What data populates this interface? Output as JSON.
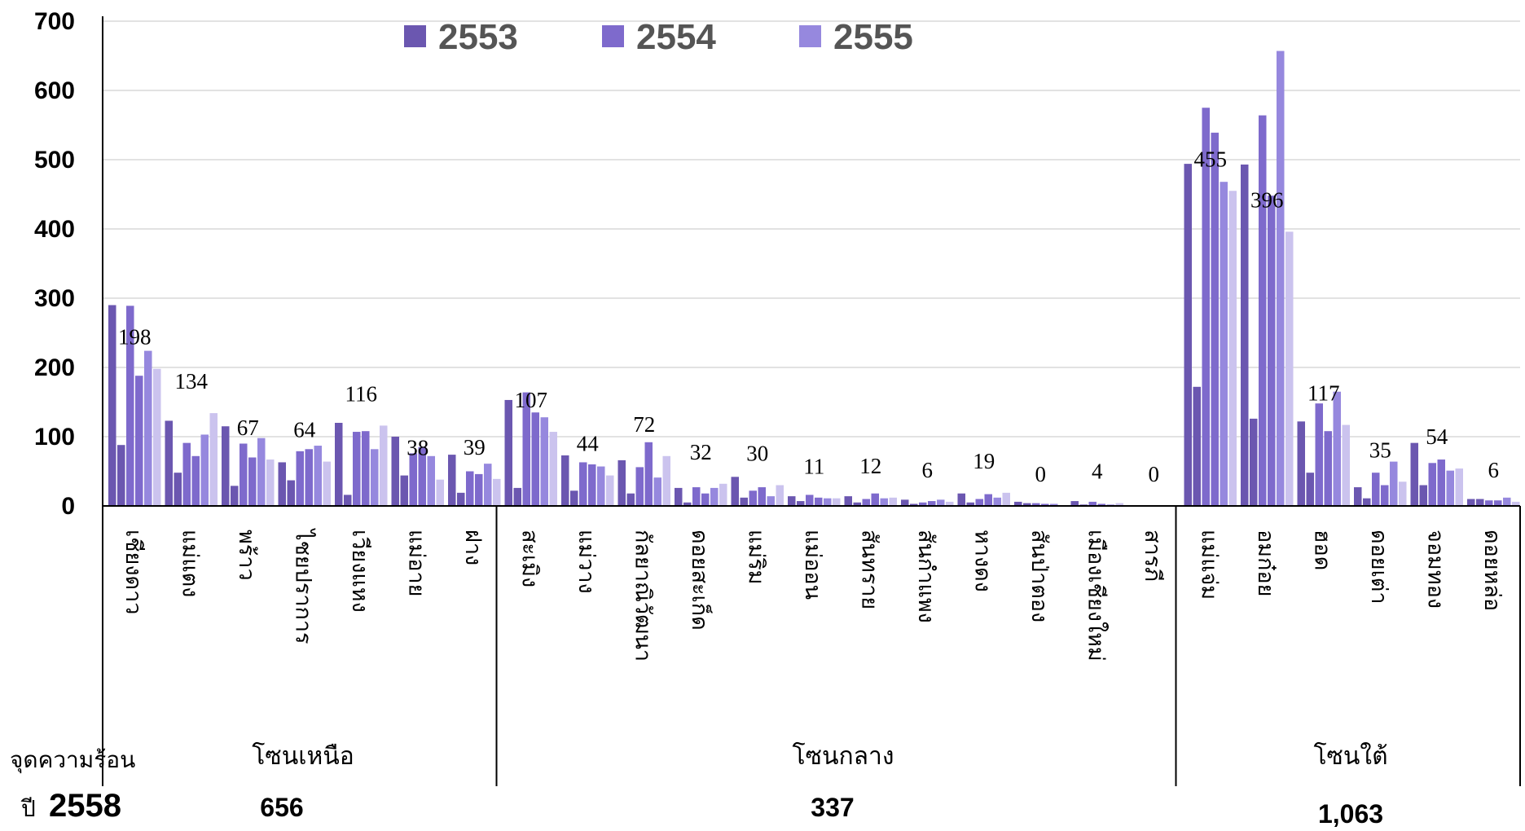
{
  "chart_data": {
    "type": "bar",
    "ylim": [
      0,
      700
    ],
    "yticks": [
      "0",
      "100",
      "200",
      "300",
      "400",
      "500",
      "600",
      "700"
    ],
    "grid": true,
    "legend_position": "top",
    "categories": [
      "เชียงดาว",
      "แม่แตง",
      "พร้าว",
      "ไชยปราการ",
      "เวียงแหง",
      "แม่อาย",
      "ฝาง",
      "สะเมิง",
      "แม่วาง",
      "กัลยาณิวัฒนา",
      "ดอยสะเก็ด",
      "แม่ริม",
      "แม่ออน",
      "สันทราย",
      "สันกำแพง",
      "หางดง",
      "สันป่าตอง",
      "เมืองเชียงใหม่",
      "สารภี",
      "แม่แจ่ม",
      "อมก๋อย",
      "ฮอด",
      "ดอยเต่า",
      "จอมทอง",
      "ดอยหล่อ"
    ],
    "series": [
      {
        "name": "2553",
        "color": "#6b57b0",
        "values": [
          290,
          123,
          115,
          63,
          120,
          100,
          74,
          153,
          73,
          66,
          26,
          42,
          14,
          14,
          9,
          18,
          6,
          7,
          0,
          494,
          493,
          122,
          27,
          91,
          10
        ]
      },
      {
        "name": "",
        "color": "#6b57b0",
        "values": [
          88,
          48,
          29,
          37,
          16,
          44,
          19,
          26,
          22,
          18,
          5,
          12,
          7,
          5,
          3,
          5,
          4,
          2,
          0,
          172,
          126,
          48,
          11,
          30,
          10
        ]
      },
      {
        "name": "2554",
        "color": "#7e6acc",
        "values": [
          289,
          91,
          90,
          79,
          107,
          76,
          50,
          164,
          63,
          56,
          27,
          22,
          16,
          10,
          5,
          10,
          4,
          6,
          0,
          575,
          564,
          148,
          48,
          62,
          8
        ]
      },
      {
        "name": "",
        "color": "#7e6acc",
        "values": [
          188,
          72,
          70,
          82,
          108,
          85,
          46,
          135,
          60,
          92,
          18,
          27,
          12,
          18,
          7,
          17,
          3,
          3,
          0,
          539,
          448,
          108,
          30,
          67,
          8
        ]
      },
      {
        "name": "2555",
        "color": "#9688de",
        "values": [
          224,
          103,
          98,
          87,
          82,
          72,
          61,
          128,
          57,
          41,
          26,
          14,
          11,
          11,
          9,
          12,
          3,
          2,
          0,
          468,
          657,
          165,
          64,
          51,
          12
        ]
      },
      {
        "name": "",
        "color": "#cbc3ee",
        "values": [
          198,
          134,
          67,
          64,
          116,
          38,
          39,
          107,
          44,
          72,
          32,
          30,
          11,
          12,
          6,
          19,
          0,
          4,
          0,
          455,
          396,
          117,
          35,
          54,
          6
        ]
      }
    ],
    "data_labels": [
      "198",
      "134",
      "67",
      "64",
      "116",
      "38",
      "39",
      "107",
      "44",
      "72",
      "32",
      "30",
      "11",
      "12",
      "6",
      "19",
      "0",
      "4",
      "0",
      "455",
      "396",
      "117",
      "35",
      "54",
      "6"
    ],
    "zones": [
      {
        "name": "โซนเหนือ",
        "total": "656"
      },
      {
        "name": "โซนกลาง",
        "total": "337"
      },
      {
        "name": "โซนใต้",
        "total": "1,063"
      }
    ],
    "row_label_1": "จุดความร้อน",
    "row_label_2_prefix": "ปี",
    "row_label_2_year": "2558"
  }
}
